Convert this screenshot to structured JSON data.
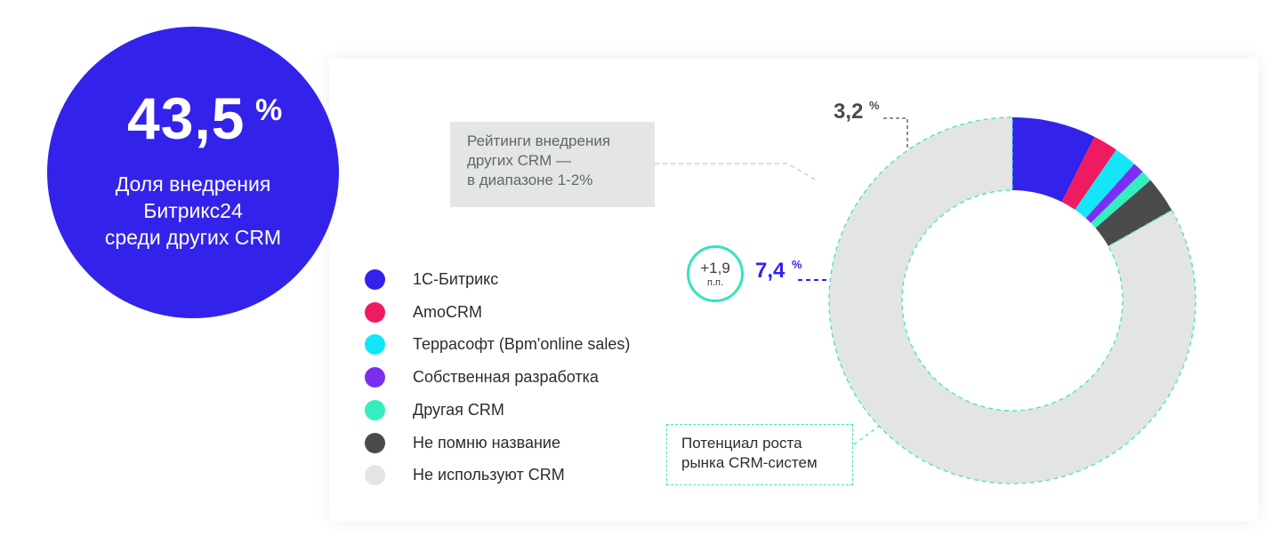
{
  "headline": {
    "value": "43,5",
    "unit": "%",
    "caption": [
      "Доля внедрения",
      "Битрикс24",
      "среди других CRM"
    ]
  },
  "callouts": {
    "bitrix_value": "7,4",
    "bitrix_unit": "%",
    "unknown_value": "3,2",
    "unknown_unit": "%",
    "growth_value": "+1,9",
    "growth_unit": "п.п.",
    "note_lines": [
      "Рейтинги внедрения",
      "других CRM —",
      "в диапазоне 1-2%"
    ],
    "potential_lines": [
      "Потенциал роста",
      "рынка CRM-систем"
    ]
  },
  "chart_data": {
    "type": "pie",
    "subtype": "donut",
    "categories": [
      "1С-Битрикс",
      "AmoCRM",
      "Террасофт (Bpm'online sales)",
      "Собственная разработка",
      "Другая CRM",
      "Не помню название",
      "Не используют CRM"
    ],
    "values": [
      7.4,
      2.2,
      2.0,
      1.0,
      1.0,
      3.2,
      83.2
    ],
    "colors": [
      "#3323ea",
      "#f01a61",
      "#13e6f7",
      "#7a2ff0",
      "#34eec2",
      "#4b4b4b",
      "#e2e5e4"
    ],
    "start_angle_deg": 270,
    "direction": "clockwise",
    "legend_position": "left"
  }
}
